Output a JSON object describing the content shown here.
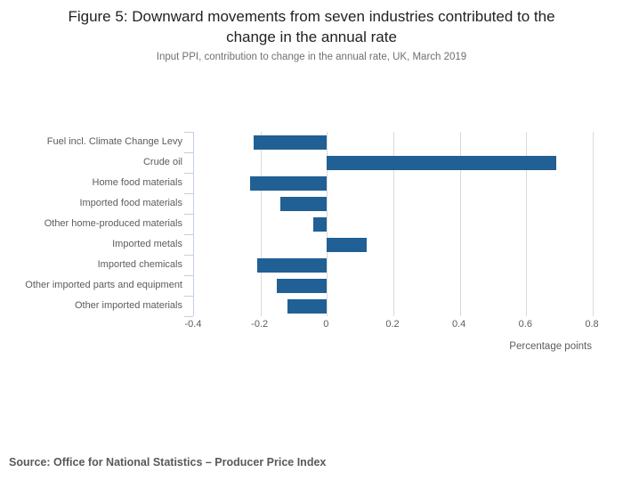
{
  "chart_data": {
    "type": "bar",
    "orientation": "horizontal",
    "title": "Figure 5: Downward movements from seven industries contributed to the change in the annual rate",
    "title_lines": [
      "Figure 5: Downward movements from seven industries contributed to the",
      "change in the annual rate"
    ],
    "subtitle": "Input PPI, contribution to change in the annual rate, UK, March 2019",
    "categories": [
      "Fuel incl. Climate Change Levy",
      "Crude oil",
      "Home food materials",
      "Imported food materials",
      "Other home-produced materials",
      "Imported metals",
      "Imported chemicals",
      "Other imported parts and equipment",
      "Other imported materials"
    ],
    "values": [
      -0.22,
      0.69,
      -0.23,
      -0.14,
      -0.04,
      0.12,
      -0.21,
      -0.15,
      -0.12
    ],
    "xlabel": "Percentage points",
    "xlim": [
      -0.4,
      0.8
    ],
    "xticks": [
      -0.4,
      -0.2,
      0,
      0.2,
      0.4,
      0.6,
      0.8
    ],
    "xtick_labels": [
      "-0.4",
      "-0.2",
      "0",
      "0.2",
      "0.4",
      "0.6",
      "0.8"
    ],
    "grid": true,
    "legend": "none",
    "bar_color": "#206095",
    "gridline_color": "#dadada",
    "axis_line_color": "#c4cfe1",
    "source": "Source: Office for National Statistics – Producer Price Index"
  }
}
